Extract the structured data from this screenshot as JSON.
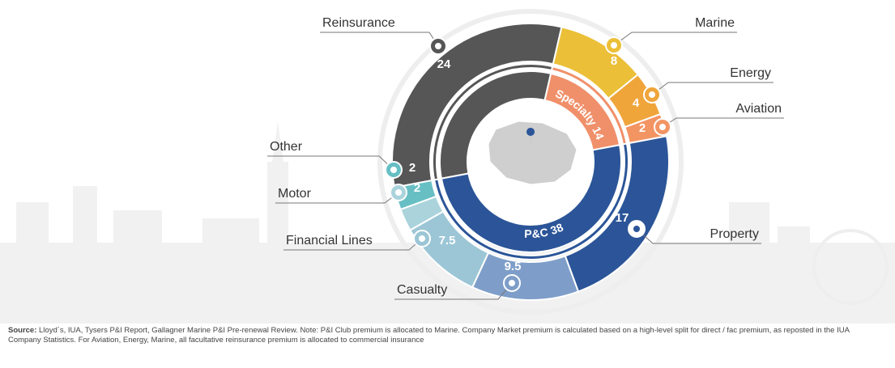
{
  "chart_data": {
    "type": "sunburst",
    "outer": {
      "categories": [
        "Reinsurance",
        "Marine",
        "Energy",
        "Aviation",
        "Property",
        "Casualty",
        "Financial Lines",
        "Motor",
        "Other"
      ],
      "values": [
        24,
        8,
        4,
        2,
        17,
        9.5,
        7.5,
        2,
        2
      ],
      "colors": [
        "#565656",
        "#ebbf38",
        "#f0a53b",
        "#f39463",
        "#2b5598",
        "#7e9ec9",
        "#9cc6d6",
        "#aad3dc",
        "#67bfc4"
      ]
    },
    "inner": {
      "categories": [
        null,
        "Specialty",
        "P&C"
      ],
      "values": [
        24,
        14,
        38
      ],
      "colors": [
        "#565656",
        "#f0906a",
        "#2b5598"
      ]
    },
    "source_label": "Source:",
    "source_text": "Lloyd´s, IUA, Tysers P&I Report, Gallagner Marine P&I Pre-renewal Review. Note: P&I Club premium is allocated to Marine. Company Market premium is calculated based on a high-level split for direct / fac premium, as reposted in the IUA Company Statistics. For Aviation, Energy, Marine, all facultative reinsurance premium is allocated to commercial insurance"
  }
}
